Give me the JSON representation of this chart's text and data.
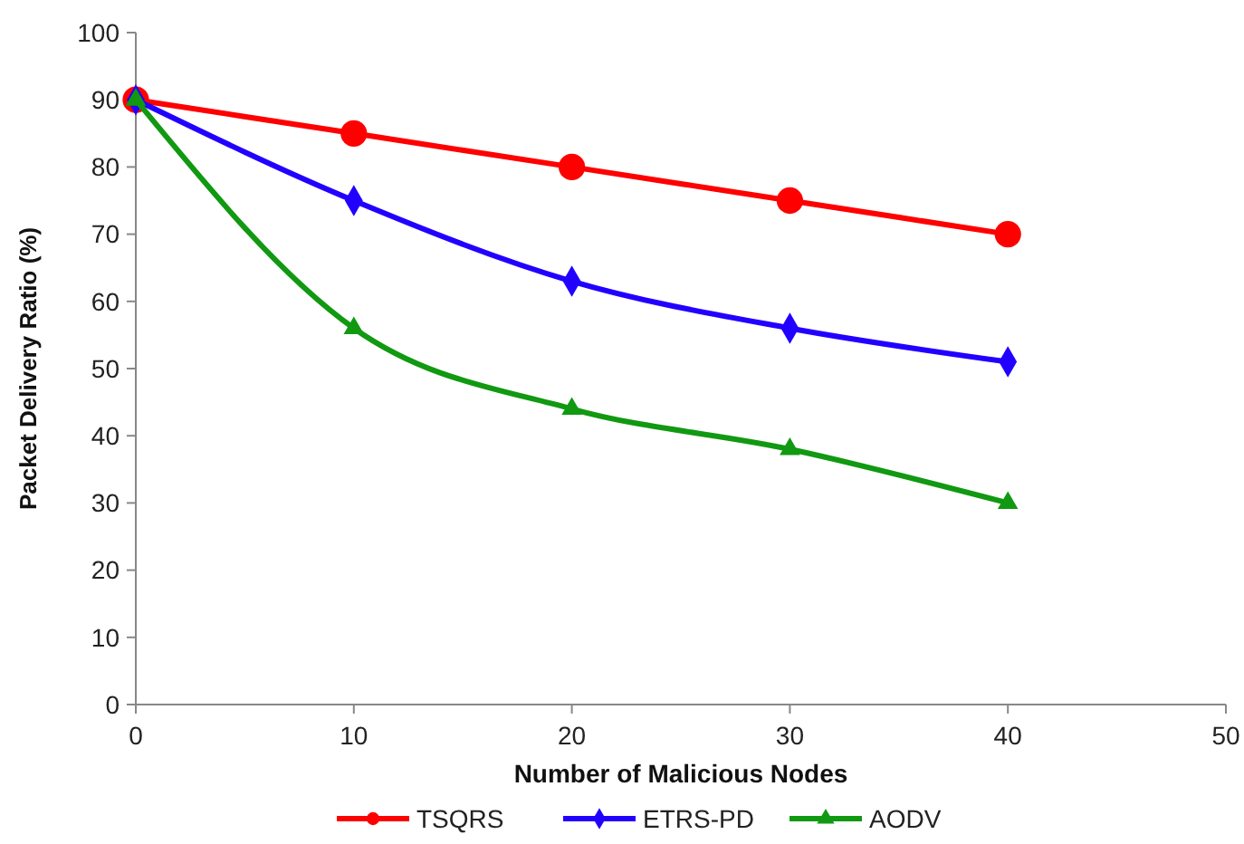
{
  "chart_data": {
    "type": "line",
    "xlabel": "Number of Malicious Nodes",
    "ylabel": "Packet Delivery Ratio (%)",
    "x": [
      0,
      10,
      20,
      30,
      40
    ],
    "series": [
      {
        "name": "TSQRS",
        "color": "#ff0000",
        "marker": "circle",
        "values": [
          90,
          85,
          80,
          75,
          70
        ]
      },
      {
        "name": "ETRS-PD",
        "color": "#2200ff",
        "marker": "diamond",
        "values": [
          90,
          75,
          63,
          56,
          51
        ]
      },
      {
        "name": "AODV",
        "color": "#119911",
        "marker": "triangle",
        "values": [
          90,
          56,
          44,
          38,
          30
        ]
      }
    ],
    "xlim": [
      0,
      50
    ],
    "xticks": [
      0,
      10,
      20,
      30,
      40,
      50
    ],
    "ylim": [
      0,
      100
    ],
    "yticks": [
      0,
      10,
      20,
      30,
      40,
      50,
      60,
      70,
      80,
      90,
      100
    ],
    "grid": false,
    "legend": "bottom",
    "line_style": "solid"
  }
}
